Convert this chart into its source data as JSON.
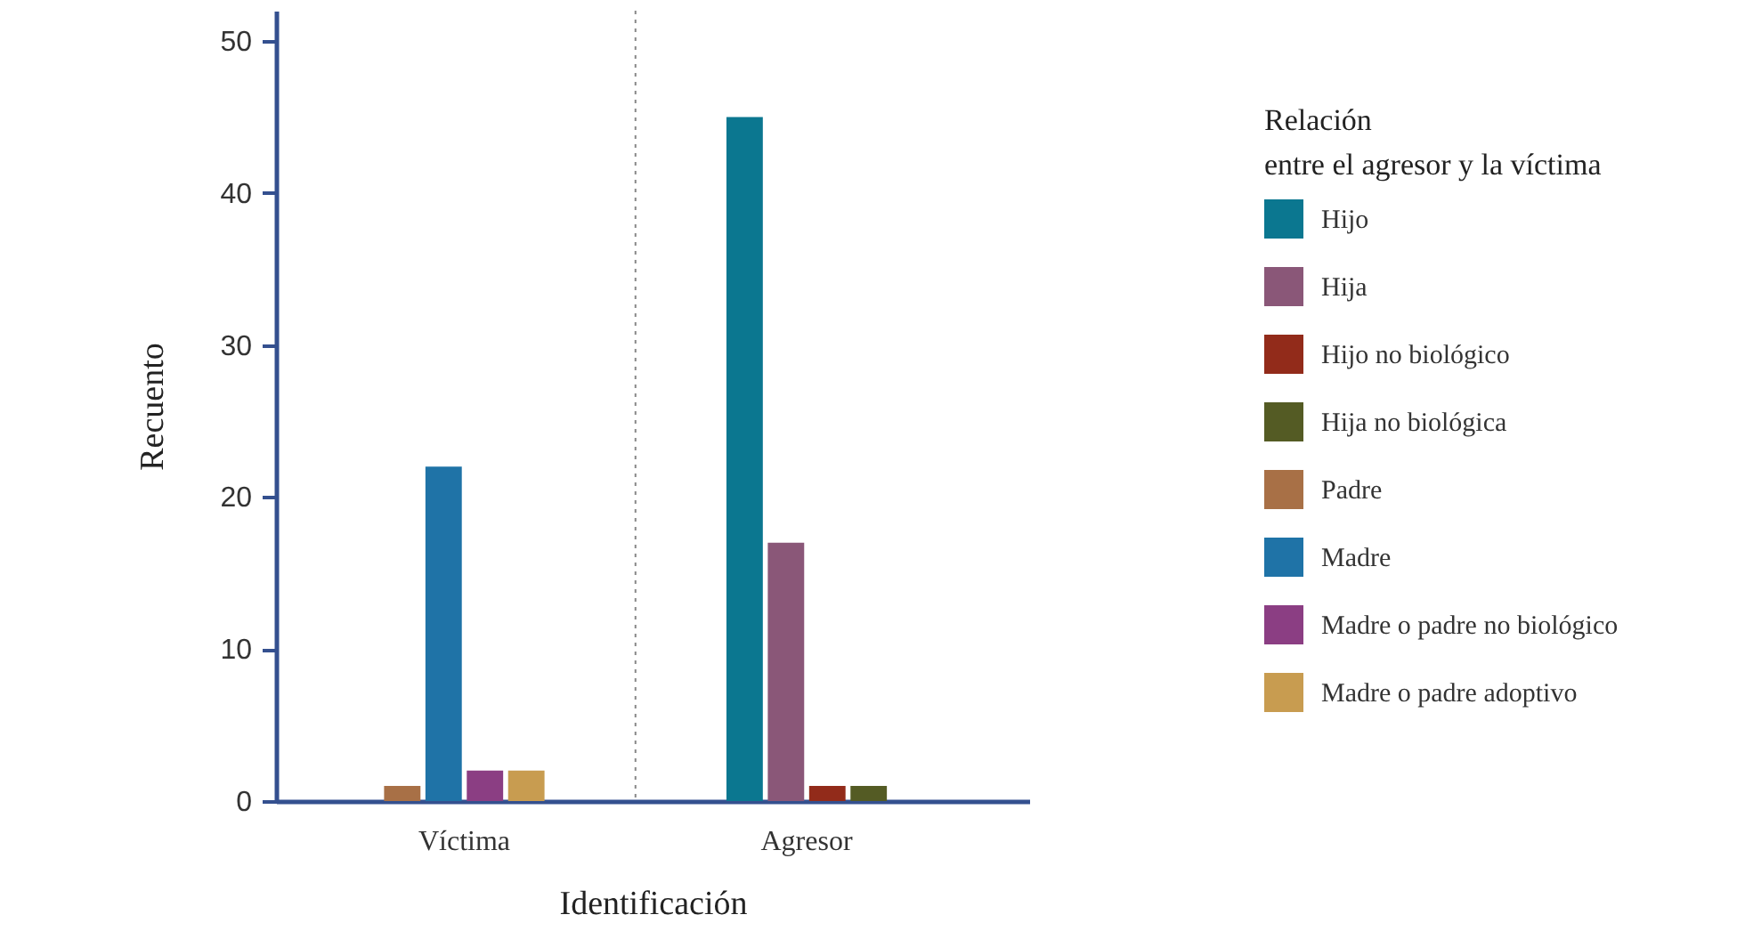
{
  "chart_data": {
    "type": "bar",
    "xlabel": "Identificación",
    "ylabel": "Recuento",
    "legend_title": "Relación entre el agresor y la víctima",
    "categories": [
      "Víctima",
      "Agresor"
    ],
    "series": [
      {
        "name": "Hijo",
        "color": "#0b7790",
        "values": [
          null,
          45
        ]
      },
      {
        "name": "Hija",
        "color": "#8a5778",
        "values": [
          null,
          17
        ]
      },
      {
        "name": "Hijo no biológico",
        "color": "#922b1a",
        "values": [
          null,
          1
        ]
      },
      {
        "name": "Hija no biológica",
        "color": "#545b24",
        "values": [
          null,
          1
        ]
      },
      {
        "name": "Padre",
        "color": "#a87046",
        "values": [
          1,
          null
        ]
      },
      {
        "name": "Madre",
        "color": "#1f73a7",
        "values": [
          22,
          null
        ]
      },
      {
        "name": "Madre o padre no biológico",
        "color": "#8b3e83",
        "values": [
          2,
          null
        ]
      },
      {
        "name": "Madre o padre adoptivo",
        "color": "#c89c50",
        "values": [
          2,
          null
        ]
      }
    ],
    "ylim": [
      0,
      52
    ],
    "yticks": [
      0,
      10,
      20,
      30,
      40,
      50
    ],
    "grid": "x",
    "legend": "right"
  }
}
